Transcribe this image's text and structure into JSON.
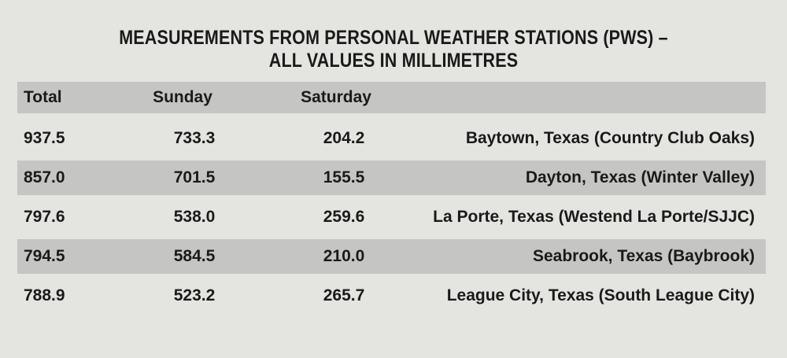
{
  "chart_data": {
    "type": "table",
    "title_lines": [
      "MEASUREMENTS FROM PERSONAL WEATHER STATIONS (PWS) –",
      "ALL VALUES IN MILLIMETRES"
    ],
    "columns": [
      "Total",
      "Sunday",
      "Saturday",
      ""
    ],
    "rows": [
      {
        "total": "937.5",
        "sunday": "733.3",
        "saturday": "204.2",
        "location": "Baytown, Texas (Country Club Oaks)"
      },
      {
        "total": "857.0",
        "sunday": "701.5",
        "saturday": "155.5",
        "location": "Dayton, Texas (Winter Valley)"
      },
      {
        "total": "797.6",
        "sunday": "538.0",
        "saturday": "259.6",
        "location": "La Porte, Texas (Westend La Porte/SJJC)"
      },
      {
        "total": "794.5",
        "sunday": "584.5",
        "saturday": "210.0",
        "location": "Seabrook, Texas (Baybrook)"
      },
      {
        "total": "788.9",
        "sunday": "523.2",
        "saturday": "265.7",
        "location": "League City, Texas (South League City)"
      }
    ]
  },
  "colors": {
    "background": "#e4e5e1",
    "row_band": "#c5c6c4",
    "text": "#1a1a1a"
  }
}
